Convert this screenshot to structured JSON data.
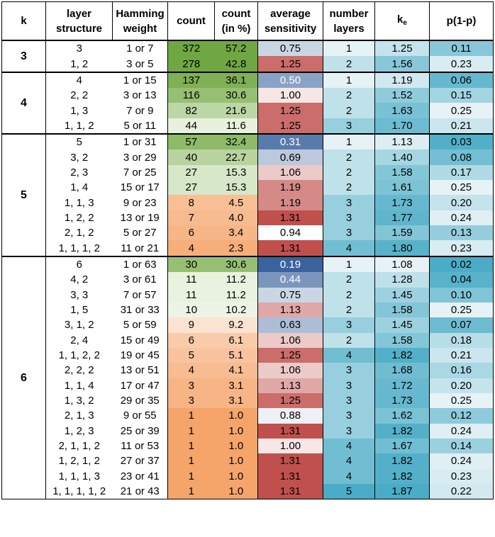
{
  "headers": {
    "k": "k",
    "layer_line1": "layer",
    "layer_line2": "structure",
    "hamming_line1": "Hamming",
    "hamming_line2": "weight",
    "count": "count",
    "count_pct_line1": "count",
    "count_pct_line2": "(in %)",
    "avg_line1": "average",
    "avg_line2": "sensitivity",
    "num_line1": "number",
    "num_line2": "layers",
    "ke_main": "k",
    "ke_sub": "e",
    "p": "p(1-p)"
  },
  "colors": {
    "green_light": "#eef5e6",
    "green_dark": "#70a742",
    "orange_light": "#fce9dc",
    "orange_dark": "#f5a46a",
    "red_dark": "#c0504d",
    "blue_dark": "#3a629d",
    "teal_light": "#e6f2f6",
    "teal_dark": "#4aacc6"
  },
  "groups": [
    {
      "k": "3",
      "rows": [
        {
          "layer": "3",
          "hamming": "1 or 7",
          "count": "372",
          "pct": "57.2",
          "avg": "0.75",
          "layers": "1",
          "ke": "1.25",
          "p": "0.11"
        },
        {
          "layer": "1, 2",
          "hamming": "3 or 5",
          "count": "278",
          "pct": "42.8",
          "avg": "1.25",
          "layers": "2",
          "ke": "1.56",
          "p": "0.23"
        }
      ]
    },
    {
      "k": "4",
      "rows": [
        {
          "layer": "4",
          "hamming": "1 or 15",
          "count": "137",
          "pct": "36.1",
          "avg": "0.50",
          "layers": "1",
          "ke": "1.19",
          "p": "0.06"
        },
        {
          "layer": "2, 2",
          "hamming": "3 or 13",
          "count": "116",
          "pct": "30.6",
          "avg": "1.00",
          "layers": "2",
          "ke": "1.52",
          "p": "0.15"
        },
        {
          "layer": "1, 3",
          "hamming": "7 or 9",
          "count": "82",
          "pct": "21.6",
          "avg": "1.25",
          "layers": "2",
          "ke": "1.63",
          "p": "0.25"
        },
        {
          "layer": "1, 1, 2",
          "hamming": "5 or 11",
          "count": "44",
          "pct": "11.6",
          "avg": "1.25",
          "layers": "3",
          "ke": "1.70",
          "p": "0.21"
        }
      ]
    },
    {
      "k": "5",
      "rows": [
        {
          "layer": "5",
          "hamming": "1 or 31",
          "count": "57",
          "pct": "32.4",
          "avg": "0.31",
          "layers": "1",
          "ke": "1.13",
          "p": "0.03"
        },
        {
          "layer": "3, 2",
          "hamming": "3 or 29",
          "count": "40",
          "pct": "22.7",
          "avg": "0.69",
          "layers": "2",
          "ke": "1.40",
          "p": "0.08"
        },
        {
          "layer": "2, 3",
          "hamming": "7 or 25",
          "count": "27",
          "pct": "15.3",
          "avg": "1.06",
          "layers": "2",
          "ke": "1.58",
          "p": "0.17"
        },
        {
          "layer": "1, 4",
          "hamming": "15 or 17",
          "count": "27",
          "pct": "15.3",
          "avg": "1.19",
          "layers": "2",
          "ke": "1.61",
          "p": "0.25"
        },
        {
          "layer": "1, 1, 3",
          "hamming": "9 or 23",
          "count": "8",
          "pct": "4.5",
          "avg": "1.19",
          "layers": "3",
          "ke": "1.73",
          "p": "0.20"
        },
        {
          "layer": "1, 2, 2",
          "hamming": "13 or 19",
          "count": "7",
          "pct": "4.0",
          "avg": "1.31",
          "layers": "3",
          "ke": "1.77",
          "p": "0.24"
        },
        {
          "layer": "2, 1, 2",
          "hamming": "5 or 27",
          "count": "6",
          "pct": "3.4",
          "avg": "0.94",
          "layers": "3",
          "ke": "1.59",
          "p": "0.13"
        },
        {
          "layer": "1, 1, 1, 2",
          "hamming": "11 or 21",
          "count": "4",
          "pct": "2.3",
          "avg": "1.31",
          "layers": "4",
          "ke": "1.80",
          "p": "0.23"
        }
      ]
    },
    {
      "k": "6",
      "rows": [
        {
          "layer": "6",
          "hamming": "1 or 63",
          "count": "30",
          "pct": "30.6",
          "avg": "0.19",
          "layers": "1",
          "ke": "1.08",
          "p": "0.02"
        },
        {
          "layer": "4, 2",
          "hamming": "3 or 61",
          "count": "11",
          "pct": "11.2",
          "avg": "0.44",
          "layers": "2",
          "ke": "1.28",
          "p": "0.04"
        },
        {
          "layer": "3, 3",
          "hamming": "7 or 57",
          "count": "11",
          "pct": "11.2",
          "avg": "0.75",
          "layers": "2",
          "ke": "1.45",
          "p": "0.10"
        },
        {
          "layer": "1, 5",
          "hamming": "31 or 33",
          "count": "10",
          "pct": "10.2",
          "avg": "1.13",
          "layers": "2",
          "ke": "1.58",
          "p": "0.25"
        },
        {
          "layer": "3, 1, 2",
          "hamming": "5 or 59",
          "count": "9",
          "pct": "9.2",
          "avg": "0.63",
          "layers": "3",
          "ke": "1.45",
          "p": "0.07"
        },
        {
          "layer": "2, 4",
          "hamming": "15 or 49",
          "count": "6",
          "pct": "6.1",
          "avg": "1.06",
          "layers": "2",
          "ke": "1.58",
          "p": "0.18"
        },
        {
          "layer": "1, 1, 2, 2",
          "hamming": "19 or 45",
          "count": "5",
          "pct": "5.1",
          "avg": "1.25",
          "layers": "4",
          "ke": "1.82",
          "p": "0.21"
        },
        {
          "layer": "2, 2, 2",
          "hamming": "13 or 51",
          "count": "4",
          "pct": "4.1",
          "avg": "1.06",
          "layers": "3",
          "ke": "1.68",
          "p": "0.16"
        },
        {
          "layer": "1, 1, 4",
          "hamming": "17 or 47",
          "count": "3",
          "pct": "3.1",
          "avg": "1.13",
          "layers": "3",
          "ke": "1.72",
          "p": "0.20"
        },
        {
          "layer": "1, 3, 2",
          "hamming": "29 or 35",
          "count": "3",
          "pct": "3.1",
          "avg": "1.25",
          "layers": "3",
          "ke": "1.73",
          "p": "0.25"
        },
        {
          "layer": "2, 1, 3",
          "hamming": "9 or 55",
          "count": "1",
          "pct": "1.0",
          "avg": "0.88",
          "layers": "3",
          "ke": "1.62",
          "p": "0.12"
        },
        {
          "layer": "1, 2, 3",
          "hamming": "25 or 39",
          "count": "1",
          "pct": "1.0",
          "avg": "1.31",
          "layers": "3",
          "ke": "1.82",
          "p": "0.24"
        },
        {
          "layer": "2, 1, 1, 2",
          "hamming": "11 or 53",
          "count": "1",
          "pct": "1.0",
          "avg": "1.00",
          "layers": "4",
          "ke": "1.67",
          "p": "0.14"
        },
        {
          "layer": "1, 2, 1, 2",
          "hamming": "27 or 37",
          "count": "1",
          "pct": "1.0",
          "avg": "1.31",
          "layers": "4",
          "ke": "1.82",
          "p": "0.24"
        },
        {
          "layer": "1, 1, 1, 3",
          "hamming": "23 or 41",
          "count": "1",
          "pct": "1.0",
          "avg": "1.31",
          "layers": "4",
          "ke": "1.82",
          "p": "0.23"
        },
        {
          "layer": "1, 1, 1, 1, 2",
          "hamming": "21 or 43",
          "count": "1",
          "pct": "1.0",
          "avg": "1.31",
          "layers": "5",
          "ke": "1.87",
          "p": "0.22"
        }
      ]
    }
  ]
}
